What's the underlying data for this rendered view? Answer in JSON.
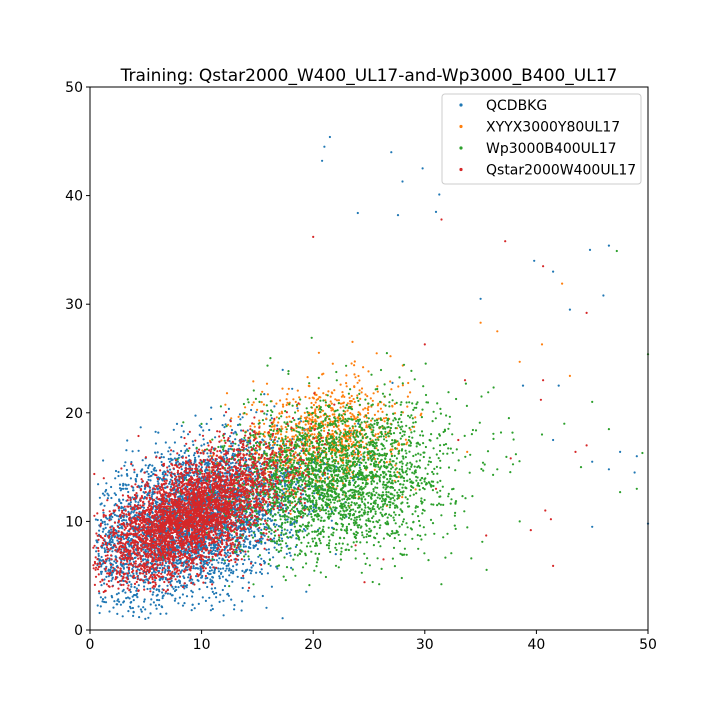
{
  "chart_data": {
    "type": "scatter",
    "title": "Training: Qstar2000_W400_UL17-and-Wp3000_B400_UL17",
    "xlabel": "",
    "ylabel": "",
    "xlim": [
      0,
      50
    ],
    "ylim": [
      0,
      50
    ],
    "xticks": [
      0,
      10,
      20,
      30,
      40,
      50
    ],
    "yticks": [
      0,
      10,
      20,
      30,
      40,
      50
    ],
    "grid": false,
    "legend_position": "top-right",
    "series": [
      {
        "name": "QCDBKG",
        "color": "#1f77b4",
        "distribution": {
          "x_median": 9,
          "y_median": 10,
          "x_spread": 5,
          "y_spread": 3.5,
          "x_range": [
            0.5,
            35
          ],
          "y_range": [
            1,
            45
          ]
        },
        "outliers": [
          [
            21.5,
            45.4
          ],
          [
            21,
            44.5
          ],
          [
            20.8,
            43.2
          ],
          [
            27,
            44
          ],
          [
            28,
            41.3
          ],
          [
            31.3,
            40.1
          ],
          [
            24,
            38.4
          ],
          [
            27.6,
            38.2
          ],
          [
            29.8,
            42.5
          ],
          [
            31,
            38.5
          ],
          [
            39.8,
            34
          ],
          [
            41.5,
            33
          ],
          [
            43,
            29.5
          ],
          [
            44.8,
            35
          ],
          [
            46.5,
            35.4
          ],
          [
            46,
            30.8
          ],
          [
            42,
            22.5
          ],
          [
            45,
            15.5
          ],
          [
            46.5,
            14.8
          ],
          [
            47.5,
            16.4
          ],
          [
            45,
            9.5
          ],
          [
            50,
            9.8
          ],
          [
            49,
            16
          ],
          [
            48.8,
            14.5
          ],
          [
            35,
            30.5
          ],
          [
            38.8,
            22.5
          ],
          [
            41.5,
            17.5
          ]
        ]
      },
      {
        "name": "XYYX3000Y80UL17",
        "color": "#ff7f0e",
        "distribution": {
          "x_median": 21,
          "y_median": 18,
          "x_spread": 3.5,
          "y_spread": 2.5,
          "x_range": [
            10,
            44
          ],
          "y_range": [
            8,
            36
          ]
        },
        "outliers": [
          [
            42.3,
            31.9
          ],
          [
            38.5,
            24.7
          ],
          [
            43,
            23.4
          ],
          [
            35,
            28.3
          ],
          [
            36.5,
            27.5
          ],
          [
            40.5,
            26.3
          ],
          [
            33.8,
            16.4
          ]
        ]
      },
      {
        "name": "Wp3000B400UL17",
        "color": "#2ca02c",
        "distribution": {
          "x_median": 22,
          "y_median": 14,
          "x_spread": 5,
          "y_spread": 3.5,
          "x_range": [
            6,
            50
          ],
          "y_range": [
            4,
            36
          ]
        },
        "outliers": [
          [
            47.2,
            34.9
          ],
          [
            50,
            25.4
          ],
          [
            49.5,
            16.3
          ],
          [
            49,
            13
          ],
          [
            47.5,
            12.7
          ],
          [
            46.5,
            18.5
          ],
          [
            44,
            15
          ],
          [
            42.5,
            19
          ],
          [
            40.5,
            18
          ],
          [
            45,
            21
          ],
          [
            38.5,
            10
          ],
          [
            36.5,
            14.8
          ]
        ]
      },
      {
        "name": "Qstar2000W400UL17",
        "color": "#d62728",
        "distribution": {
          "x_median": 9,
          "y_median": 10.5,
          "x_spread": 4,
          "y_spread": 2.8,
          "x_range": [
            0.3,
            47
          ],
          "y_range": [
            3.5,
            37
          ]
        },
        "outliers": [
          [
            20,
            36.2
          ],
          [
            37.2,
            35.8
          ],
          [
            40.6,
            33.5
          ],
          [
            44.5,
            29.2
          ],
          [
            31.5,
            37.8
          ],
          [
            33.6,
            23
          ],
          [
            40.6,
            23
          ],
          [
            40.4,
            21.2
          ],
          [
            44.5,
            17
          ],
          [
            43.5,
            16.4
          ],
          [
            41.5,
            5.9
          ],
          [
            40.8,
            11
          ],
          [
            41.3,
            10.2
          ],
          [
            39.5,
            9.2
          ],
          [
            35.5,
            8.7
          ],
          [
            26.3,
            6.5
          ],
          [
            24.6,
            4.4
          ],
          [
            23.8,
            7.8
          ],
          [
            31,
            13
          ],
          [
            33,
            17.5
          ],
          [
            37.7,
            15.8
          ],
          [
            30,
            26.3
          ]
        ]
      }
    ]
  }
}
